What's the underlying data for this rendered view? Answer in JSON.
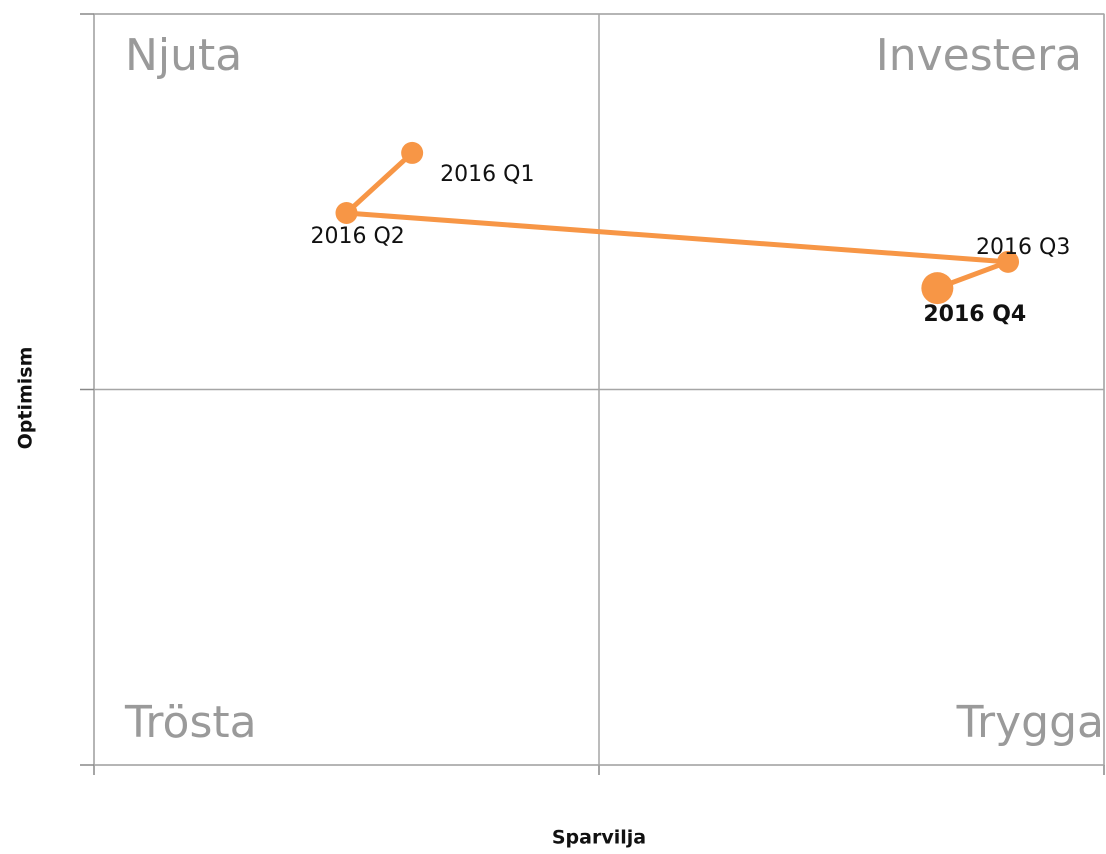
{
  "chart_data": {
    "type": "line_scatter",
    "x_label": "Sparvilja",
    "y_label": "Optimism",
    "annotations": [
      "Njuta",
      "Investera",
      "Trösta",
      "Trygga"
    ],
    "series": [
      {
        "color": "#f79646",
        "labels": [
          "2016 Q1",
          "2016 Q2",
          "2016 Q3",
          "2016 Q4"
        ],
        "x": [
          -0.37,
          -0.5,
          0.81,
          0.67
        ],
        "values": [
          0.63,
          0.47,
          0.34,
          0.27
        ]
      }
    ],
    "xlim": [
      -1,
      1
    ],
    "ylim": [
      -1,
      1
    ],
    "xticks": [
      -1,
      0,
      1
    ],
    "yticks": [
      -1,
      0,
      1
    ],
    "grid": true
  }
}
